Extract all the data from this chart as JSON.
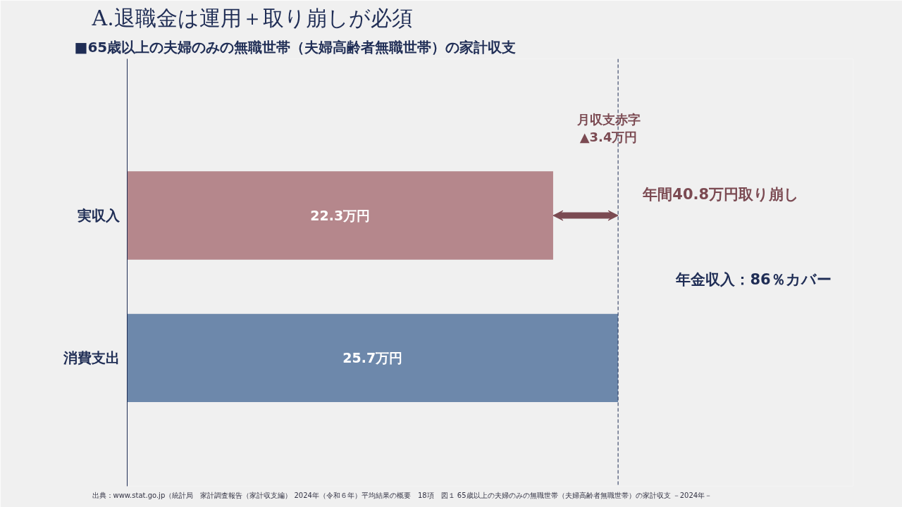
{
  "chart_data": {
    "type": "bar",
    "orientation": "horizontal",
    "title": "A.退職金は運用＋取り崩しが必須",
    "subtitle": "■65歳以上の夫婦のみの無職世帯（夫婦高齢者無職世帯）の家計収支",
    "categories": [
      "実収入",
      "消費支出"
    ],
    "values": [
      22.3,
      25.7
    ],
    "colors": [
      "#b5878c",
      "#6d88ab"
    ],
    "value_labels": [
      "22.3万円",
      "25.7万円"
    ],
    "xlim": [
      0,
      38
    ],
    "tick_labels": "y",
    "grid": false,
    "ref_lines": [
      {
        "axis": "x",
        "value": 25.7,
        "color": "#1f2d55",
        "line_style": "dashed"
      }
    ],
    "annotations": [
      "月収支赤字\n▲3.4万円",
      "年間40.8万円取り崩し",
      "年金収入：86％カバー",
      "出典：www.stat.go.jp（統計局　家計調査報告（家計収支編） 2024年（令和６年）平均結果の概要　18項　図１ 65歳以上の夫婦のみの無職世帯（夫婦高齢者無職世帯）の家計収支 －2024年－"
    ]
  }
}
